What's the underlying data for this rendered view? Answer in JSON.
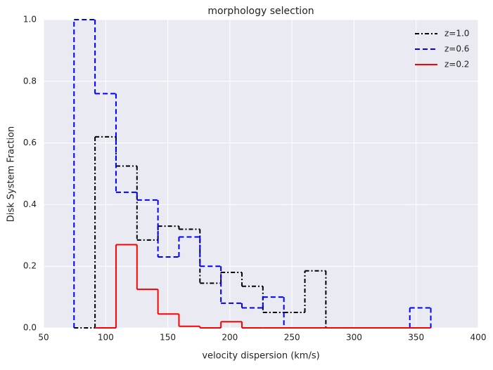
{
  "chart_data": {
    "type": "histogram",
    "histtype": "step",
    "title": "morphology selection",
    "xlabel": "velocity dispersion (km/s)",
    "ylabel": "Disk System Fraction",
    "bins": [
      74.5,
      91.4,
      108.3,
      125.2,
      142.1,
      159,
      175.9,
      192.8,
      209.7,
      226.6,
      243.5,
      260.4,
      277.3,
      294.2,
      311.1,
      328,
      344.9,
      361.8
    ],
    "series": [
      {
        "name": "z=1.0",
        "color": "#000000",
        "linestyle": "dashdot",
        "values": [
          0,
          0.62,
          0.525,
          0.285,
          0.33,
          0.32,
          0.145,
          0.18,
          0.135,
          0.05,
          0.05,
          0.185,
          0,
          0,
          0,
          0,
          0
        ]
      },
      {
        "name": "z=0.6",
        "color": "#0000ff",
        "linestyle": "dashed",
        "values": [
          1.0,
          0.76,
          0.44,
          0.415,
          0.23,
          0.295,
          0.2,
          0.08,
          0.065,
          0.1,
          0,
          0,
          0,
          0,
          0,
          0,
          0.065
        ]
      },
      {
        "name": "z=0.2",
        "color": "#ff0000",
        "linestyle": "solid",
        "values": [
          null,
          0,
          0.27,
          0.125,
          0.045,
          0.005,
          0,
          0.02,
          0,
          0,
          0,
          0,
          0,
          0,
          0,
          0,
          0
        ]
      }
    ],
    "xlim": [
      50,
      400
    ],
    "xticks": [
      50,
      100,
      150,
      200,
      250,
      300,
      350,
      400
    ],
    "ylim": [
      0,
      1.0
    ],
    "yticks": [
      {
        "value": 0,
        "label": "0.0"
      },
      {
        "value": 0.2,
        "label": "0.2"
      },
      {
        "value": 0.4,
        "label": "0.4"
      },
      {
        "value": 0.6,
        "label": "0.6"
      },
      {
        "value": 0.8,
        "label": "0.8"
      },
      {
        "value": 1.0,
        "label": "1.0"
      }
    ],
    "grid": true,
    "legend": "upper right",
    "background": "#eaeaf2"
  }
}
